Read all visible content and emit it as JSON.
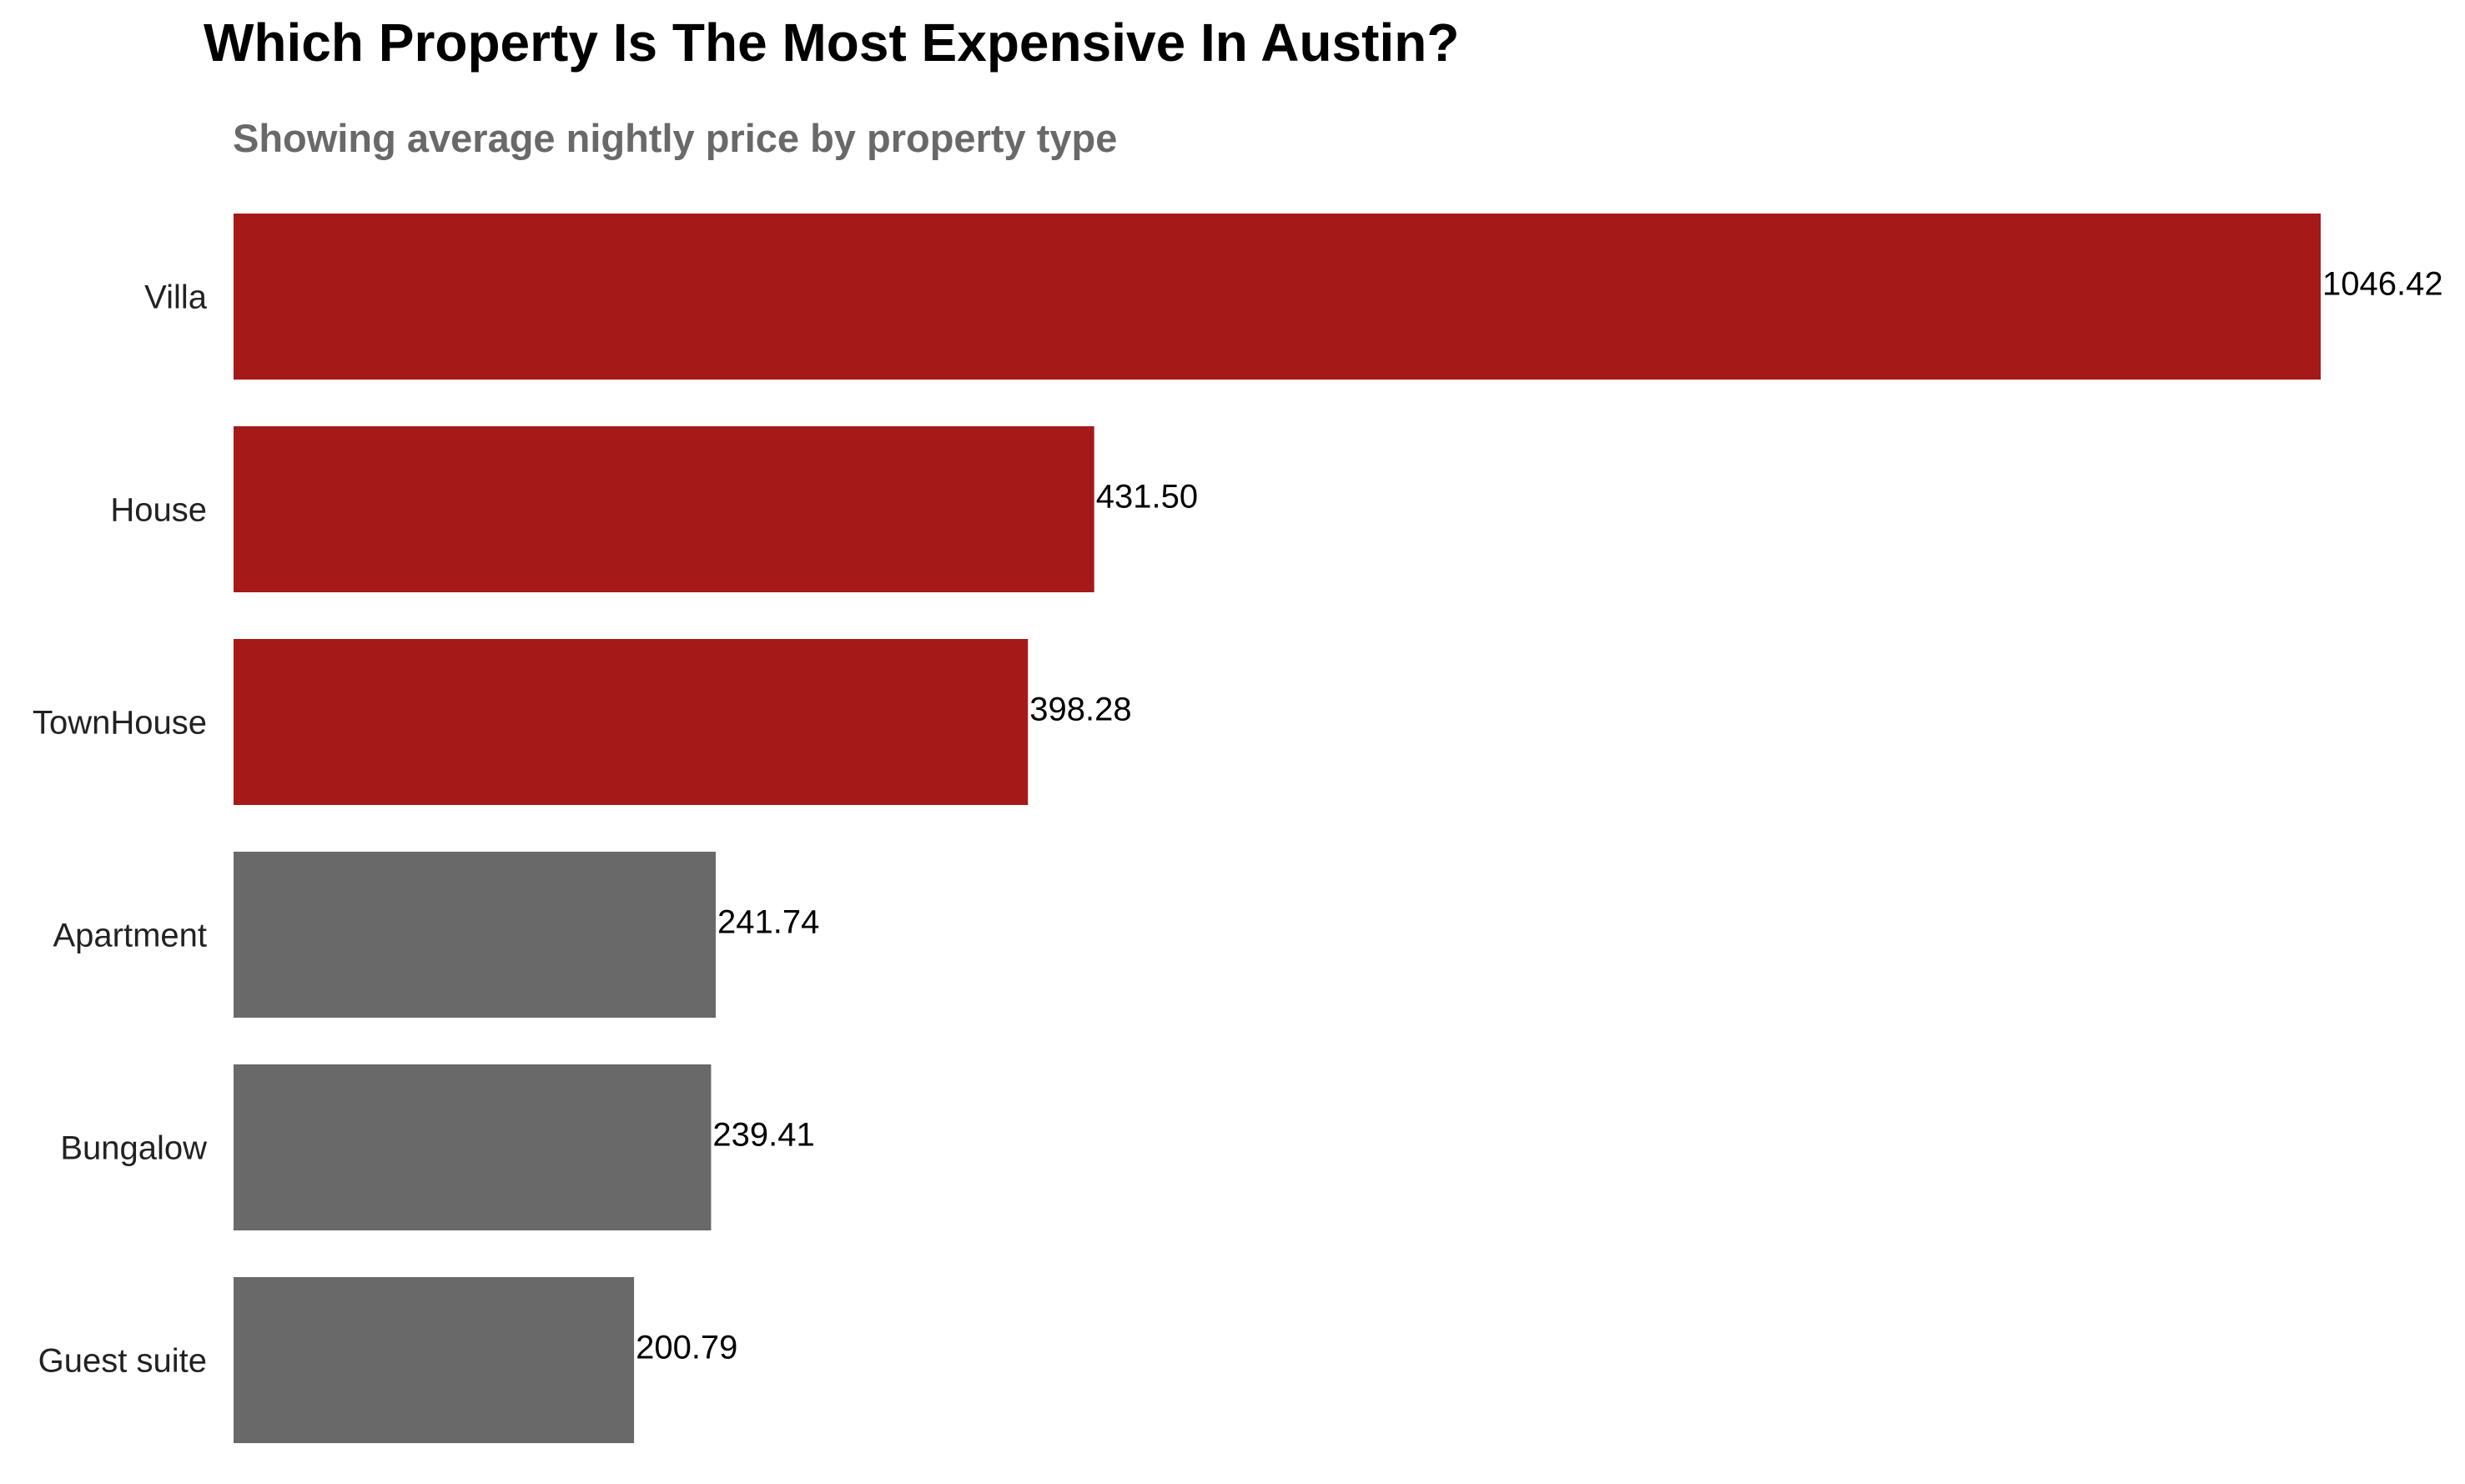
{
  "chart_data": {
    "type": "bar",
    "orientation": "horizontal",
    "title": "Which Property Is The Most Expensive In Austin?",
    "subtitle": "Showing average nightly price by property type",
    "xlabel": "",
    "ylabel": "",
    "categories": [
      "Villa",
      "House",
      "TownHouse",
      "Apartment",
      "Bungalow",
      "Guest suite"
    ],
    "values": [
      1046.42,
      431.5,
      398.28,
      241.74,
      239.41,
      200.79
    ],
    "value_labels": [
      "1046.42",
      "431.50",
      "398.28",
      "241.74",
      "239.41",
      "200.79"
    ],
    "bar_colors": [
      "#a51919",
      "#a51919",
      "#a51919",
      "#696969",
      "#696969",
      "#696969"
    ],
    "xlim": [
      0,
      1046.42
    ],
    "grid": false,
    "legend": "none"
  },
  "colors": {
    "highlight": "#a51919",
    "neutral": "#696969",
    "title": "#000000",
    "subtitle": "#696969"
  }
}
